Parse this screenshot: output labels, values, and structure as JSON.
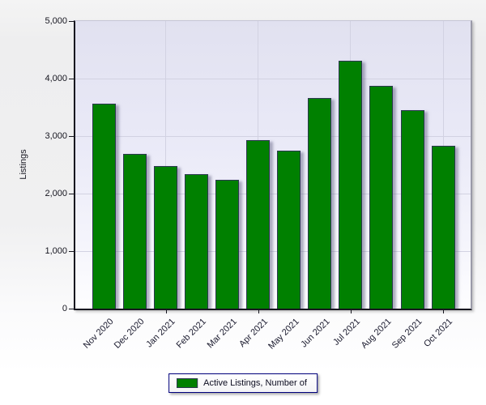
{
  "chart_data": {
    "type": "bar",
    "ylabel": "Listings",
    "categories": [
      "Nov 2020",
      "Dec 2020",
      "Jan 2021",
      "Feb 2021",
      "Mar 2021",
      "Apr 2021",
      "May 2021",
      "Jun 2021",
      "Jul 2021",
      "Aug 2021",
      "Sep 2021",
      "Oct 2021"
    ],
    "series": [
      {
        "name": "Active Listings, Number of",
        "values": [
          3560,
          2690,
          2480,
          2340,
          2240,
          2930,
          2740,
          3660,
          4310,
          3870,
          3450,
          2830
        ]
      }
    ],
    "ylim": [
      0,
      5000
    ],
    "yticks": [
      {
        "value": 0,
        "label": "0"
      },
      {
        "value": 1000,
        "label": "1,000"
      },
      {
        "value": 2000,
        "label": "2,000"
      },
      {
        "value": 3000,
        "label": "3,000"
      },
      {
        "value": 4000,
        "label": "4,000"
      },
      {
        "value": 5000,
        "label": "5,000"
      }
    ],
    "grid": true,
    "x_grid_at": [
      "Jan 2021",
      "Apr 2021",
      "Jul 2021",
      "Oct 2021"
    ],
    "legend_position": "bottom",
    "colors": {
      "bar_fill": "#008000",
      "bar_border": "#2c3850",
      "grid": "#d2d2e2",
      "plot_bg_top": "#e1e1f0",
      "plot_bg_bottom": "#fefeff",
      "legend_border": "#00007d",
      "text": "#15151f"
    }
  }
}
